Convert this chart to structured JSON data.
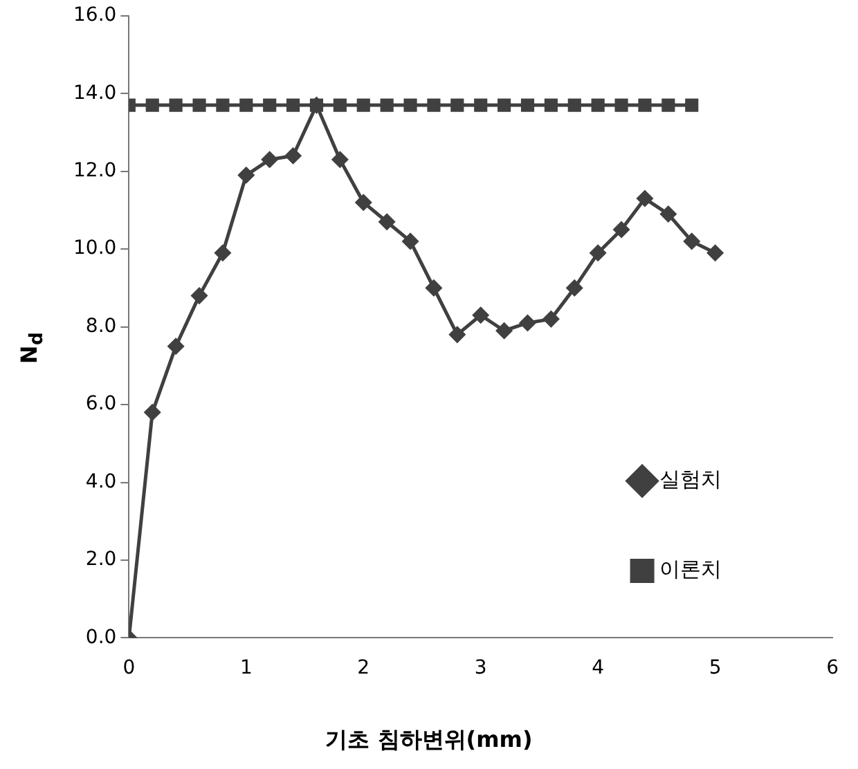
{
  "chart_data": {
    "type": "line",
    "xlabel": "기초 침하변위(mm)",
    "ylabel": "N$_{d}$",
    "xlim": [
      0,
      6
    ],
    "xticks": [
      0,
      1,
      2,
      3,
      4,
      5,
      6
    ],
    "ylim": [
      0,
      16
    ],
    "yticks": [
      {
        "value": 0,
        "label": "0.0"
      },
      {
        "value": 2,
        "label": "2.0"
      },
      {
        "value": 4,
        "label": "4.0"
      },
      {
        "value": 6,
        "label": "6.0"
      },
      {
        "value": 8,
        "label": "8.0"
      },
      {
        "value": 10,
        "label": "10.0"
      },
      {
        "value": 12,
        "label": "12.0"
      },
      {
        "value": 14,
        "label": "14.0"
      },
      {
        "value": 16,
        "label": "16.0"
      }
    ],
    "grid": false,
    "legend": "right",
    "series": [
      {
        "name": "실험치",
        "color": "#404040",
        "marker": "diamond",
        "x": [
          0,
          0.2,
          0.4,
          0.6,
          0.8,
          1.0,
          1.2,
          1.4,
          1.6,
          1.8,
          2.0,
          2.2,
          2.4,
          2.6,
          2.8,
          3.0,
          3.2,
          3.4,
          3.6,
          3.8,
          4.0,
          4.2,
          4.4,
          4.6,
          4.8,
          5.0
        ],
        "values": [
          0,
          5.8,
          7.5,
          8.8,
          9.9,
          11.9,
          12.3,
          12.4,
          13.7,
          12.3,
          11.2,
          10.7,
          10.2,
          9.0,
          7.8,
          8.3,
          7.9,
          8.1,
          8.2,
          9.0,
          9.9,
          10.5,
          11.3,
          10.9,
          10.2,
          9.9
        ]
      },
      {
        "name": "이론치",
        "color": "#404040",
        "marker": "square",
        "x": [
          0,
          0.2,
          0.4,
          0.6,
          0.8,
          1.0,
          1.2,
          1.4,
          1.6,
          1.8,
          2.0,
          2.2,
          2.4,
          2.6,
          2.8,
          3.0,
          3.2,
          3.4,
          3.6,
          3.8,
          4.0,
          4.2,
          4.4,
          4.6,
          4.8
        ],
        "values": [
          13.7,
          13.7,
          13.7,
          13.7,
          13.7,
          13.7,
          13.7,
          13.7,
          13.7,
          13.7,
          13.7,
          13.7,
          13.7,
          13.7,
          13.7,
          13.7,
          13.7,
          13.7,
          13.7,
          13.7,
          13.7,
          13.7,
          13.7,
          13.7,
          13.7
        ]
      }
    ]
  }
}
